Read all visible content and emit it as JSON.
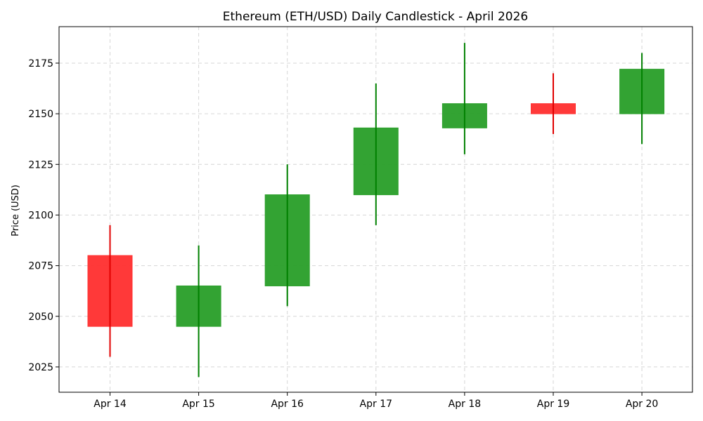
{
  "chart_data": {
    "type": "candlestick",
    "title": "Ethereum (ETH/USD) Daily Candlestick - April 2026",
    "xlabel": "",
    "ylabel": "Price (USD)",
    "categories": [
      "Apr 14",
      "Apr 15",
      "Apr 16",
      "Apr 17",
      "Apr 18",
      "Apr 19",
      "Apr 20"
    ],
    "open": [
      2080,
      2045,
      2065,
      2110,
      2143,
      2155,
      2150
    ],
    "high": [
      2095,
      2085,
      2125,
      2165,
      2185,
      2170,
      2180
    ],
    "low": [
      2030,
      2020,
      2055,
      2095,
      2130,
      2140,
      2135
    ],
    "close": [
      2045,
      2065,
      2110,
      2143,
      2155,
      2150,
      2172
    ],
    "ylim": [
      2012.5,
      2193
    ],
    "yticks": [
      2025,
      2050,
      2075,
      2100,
      2125,
      2150,
      2175
    ],
    "grid": true,
    "colors": {
      "up_body": "#2ca02c",
      "up_wick": "#008000",
      "down_body": "#ff3333",
      "down_wick": "#e00000",
      "grid": "#d6d6d6",
      "frame": "#000000"
    }
  }
}
